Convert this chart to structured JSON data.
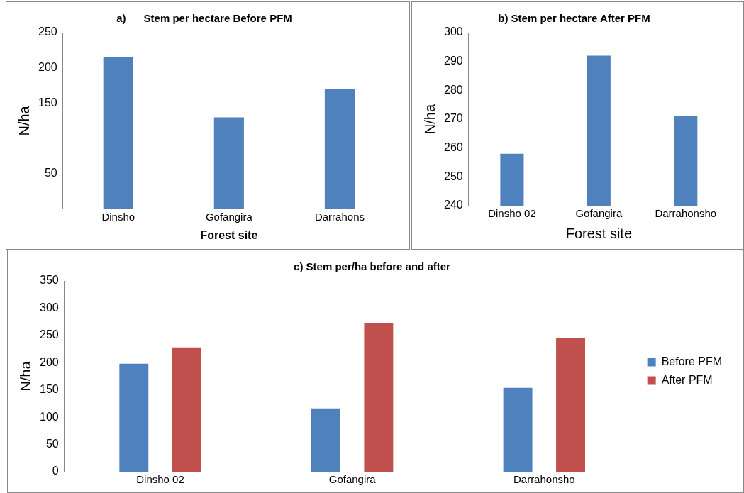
{
  "chart_data": [
    {
      "type": "bar",
      "title": "a)      Stem per hectare Before PFM",
      "ylabel": "N/ha",
      "xlabel": "Forest site",
      "categories": [
        "Dinsho",
        "Gofangira",
        "Darrahons"
      ],
      "values": [
        215,
        130,
        170
      ],
      "color": "#4f81bd",
      "ylim": [
        0,
        250
      ],
      "yticks": [
        50,
        150,
        200,
        250
      ],
      "grid": false,
      "legend": false
    },
    {
      "type": "bar",
      "title": "b) Stem per hectare After PFM",
      "ylabel": "N/ha",
      "xlabel": "Forest site",
      "categories": [
        "Dinsho 02",
        "Gofangira",
        "Darrahonsho"
      ],
      "values": [
        258,
        292,
        271
      ],
      "color": "#4f81bd",
      "ylim": [
        240,
        300
      ],
      "yticks": [
        240,
        250,
        260,
        270,
        280,
        290,
        300
      ],
      "grid": false,
      "legend": false
    },
    {
      "type": "bar",
      "title": "c) Stem per/ha before and after",
      "ylabel": "N/ha",
      "categories": [
        "Dinsho 02",
        "Gofangira",
        "Darrahonsho"
      ],
      "series": [
        {
          "name": "Before PFM",
          "color": "#4f81bd",
          "values": [
            198,
            116,
            154
          ]
        },
        {
          "name": "After PFM",
          "color": "#c0504d",
          "values": [
            228,
            273,
            246
          ]
        }
      ],
      "ylim": [
        0,
        350
      ],
      "yticks": [
        0,
        50,
        100,
        150,
        200,
        250,
        300,
        350
      ],
      "grid": false,
      "legend": "right"
    }
  ]
}
